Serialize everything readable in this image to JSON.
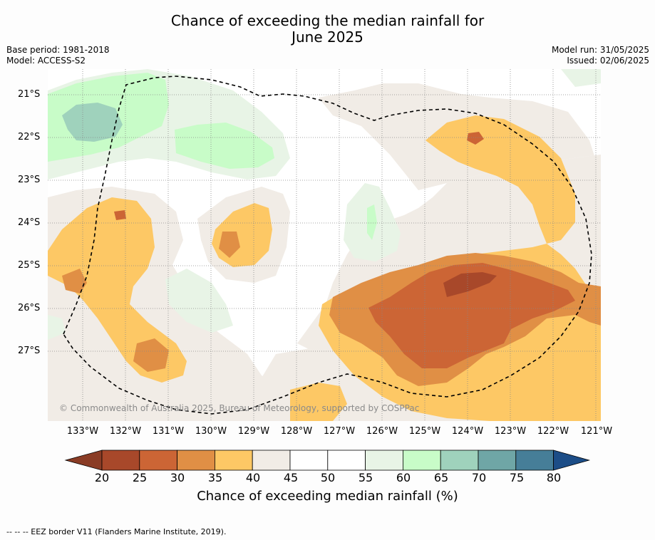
{
  "title_line1": "Chance of exceeding the median rainfall for",
  "title_line2": "June 2025",
  "base_period": "Base period: 1981-2018",
  "model": "Model: ACCESS-S2",
  "model_run": "Model run: 31/05/2025",
  "issued": "Issued: 02/06/2025",
  "copyright": "© Commonwealth of Australia 2025, Bureau of Meteorology, supported by COSPPac",
  "lat_labels": [
    "21°S",
    "22°S",
    "23°S",
    "24°S",
    "25°S",
    "26°S",
    "27°S"
  ],
  "lon_labels": [
    "133°W",
    "132°W",
    "131°W",
    "130°W",
    "129°W",
    "128°W",
    "127°W",
    "126°W",
    "125°W",
    "124°W",
    "123°W",
    "122°W",
    "121°W"
  ],
  "colorbar": {
    "title": "Chance of exceeding median rainfall (%)",
    "ticks": [
      "20",
      "25",
      "30",
      "35",
      "40",
      "45",
      "50",
      "55",
      "60",
      "65",
      "70",
      "75",
      "80"
    ],
    "colors": [
      "#a8482a",
      "#cc6535",
      "#e08f45",
      "#fdc865",
      "#f1ece6",
      "#ffffff",
      "#ffffff",
      "#e8f4e6",
      "#c8fcc8",
      "#9fd2bc",
      "#6fa6a6",
      "#467e98"
    ],
    "under_color": "#8a3c25",
    "over_color": "#1c4d87"
  },
  "footer": "--  --  -- EEZ border V11 (Flanders Marine Institute, 2019)."
}
